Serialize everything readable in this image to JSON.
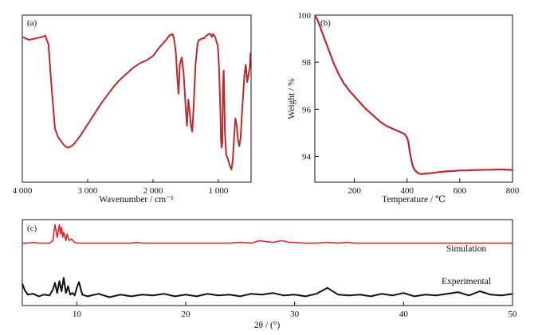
{
  "colors": {
    "red": "#c0272d",
    "sim_red": "#e0262c",
    "black": "#111111"
  },
  "chart_data": [
    {
      "panel": "(a)",
      "type": "line",
      "xlabel": "Wavenumber / cm⁻¹",
      "ylabel": "",
      "xlim": [
        4000,
        500
      ],
      "xticks": [
        4000,
        3000,
        2000,
        1000
      ],
      "xtick_labels": [
        "4 000",
        "3 000",
        "2 000",
        "1 000"
      ],
      "yticks_shown": false,
      "ylim": [
        0,
        100
      ],
      "series": [
        {
          "x": [
            4000,
            3900,
            3800,
            3700,
            3650,
            3600,
            3550,
            3500,
            3450,
            3400,
            3350,
            3300,
            3250,
            3200,
            3100,
            3000,
            2900,
            2800,
            2700,
            2600,
            2500,
            2400,
            2300,
            2200,
            2100,
            2000,
            1900,
            1800,
            1750,
            1700,
            1680,
            1650,
            1630,
            1610,
            1590,
            1560,
            1530,
            1500,
            1480,
            1460,
            1440,
            1420,
            1400,
            1380,
            1350,
            1320,
            1300,
            1280,
            1250,
            1220,
            1200,
            1180,
            1150,
            1120,
            1100,
            1080,
            1050,
            1030,
            1010,
            990,
            970,
            960,
            950,
            940,
            930,
            920,
            910,
            900,
            880,
            860,
            840,
            820,
            800,
            780,
            760,
            740,
            720,
            700,
            680,
            660,
            640,
            620,
            600,
            580,
            560,
            540,
            520,
            510,
            500
          ],
          "y": [
            91,
            89,
            90,
            91,
            92,
            86,
            55,
            28,
            22,
            19,
            16,
            15,
            16,
            18,
            24,
            31,
            38,
            45,
            51,
            57,
            62,
            66,
            70,
            73,
            75,
            78,
            84,
            89,
            92,
            93,
            90,
            80,
            64,
            52,
            72,
            77,
            65,
            42,
            30,
            48,
            40,
            30,
            26,
            42,
            72,
            86,
            89,
            89,
            90,
            90,
            91,
            92,
            93,
            93,
            91,
            93,
            91,
            88,
            85,
            70,
            40,
            20,
            15,
            18,
            55,
            68,
            50,
            25,
            10,
            8,
            5,
            2,
            0,
            6,
            22,
            35,
            30,
            20,
            16,
            22,
            38,
            52,
            66,
            72,
            60,
            65,
            70,
            80,
            78
          ]
        }
      ]
    },
    {
      "panel": "(b)",
      "type": "line",
      "xlabel": "Temperature / ℃",
      "ylabel": "Weight / %",
      "xlim": [
        50,
        800
      ],
      "ylim": [
        92.9,
        100
      ],
      "xticks": [
        200,
        400,
        600,
        800
      ],
      "yticks": [
        94,
        96,
        98,
        100
      ],
      "series": [
        {
          "x": [
            50,
            60,
            70,
            80,
            90,
            100,
            120,
            140,
            160,
            180,
            200,
            220,
            240,
            260,
            280,
            300,
            320,
            340,
            360,
            380,
            390,
            400,
            405,
            410,
            415,
            420,
            425,
            430,
            440,
            450,
            460,
            470,
            480,
            500,
            520,
            540,
            560,
            580,
            600,
            620,
            640,
            660,
            680,
            700,
            720,
            740,
            760,
            780,
            800
          ],
          "y": [
            100,
            99.8,
            99.5,
            99.2,
            98.9,
            98.6,
            98.0,
            97.5,
            97.1,
            96.8,
            96.55,
            96.3,
            96.05,
            95.85,
            95.65,
            95.45,
            95.3,
            95.2,
            95.1,
            95.0,
            94.95,
            94.8,
            94.6,
            94.2,
            93.9,
            93.65,
            93.5,
            93.4,
            93.3,
            93.25,
            93.25,
            93.27,
            93.28,
            93.3,
            93.33,
            93.35,
            93.37,
            93.38,
            93.4,
            93.4,
            93.41,
            93.42,
            93.42,
            93.43,
            93.43,
            93.44,
            93.44,
            93.43,
            93.42
          ]
        }
      ]
    },
    {
      "panel": "(c)",
      "type": "line",
      "xlabel": "2θ / (°)",
      "ylabel": "",
      "xlim": [
        5,
        50
      ],
      "xticks": [
        10,
        20,
        30,
        40,
        50
      ],
      "ylim": [
        0,
        100
      ],
      "series": [
        {
          "name": "Simulation",
          "x": [
            5,
            5.5,
            6,
            6.5,
            7,
            7.5,
            7.8,
            8.0,
            8.2,
            8.4,
            8.5,
            8.6,
            8.7,
            8.8,
            9.0,
            9.1,
            9.3,
            9.5,
            9.8,
            10.1,
            10.4,
            11,
            12,
            13,
            14,
            15,
            15.5,
            16,
            17,
            18,
            19,
            20,
            21,
            22,
            23,
            24,
            25,
            26,
            26.8,
            27.3,
            28,
            28.8,
            29.5,
            30,
            31,
            32,
            33,
            34,
            34.8,
            35.5,
            36,
            37,
            38,
            39,
            40,
            41,
            42,
            43,
            44,
            45,
            46,
            47,
            48,
            49,
            50
          ],
          "y": [
            73,
            73,
            74,
            73,
            73,
            73,
            76,
            95,
            80,
            95,
            84,
            92,
            80,
            86,
            76,
            84,
            76,
            78,
            74,
            73,
            73,
            73,
            73,
            73,
            73,
            73,
            74,
            73,
            73,
            73,
            73,
            73,
            73,
            73,
            73,
            73,
            74,
            73,
            76,
            75,
            74,
            76,
            74,
            74,
            73,
            73,
            74,
            73,
            74,
            73,
            73,
            73,
            73,
            73,
            73,
            73,
            73,
            73,
            73,
            73,
            73,
            73,
            73,
            73,
            73
          ]
        },
        {
          "name": "Experimental",
          "x": [
            5,
            5.2,
            5.5,
            6,
            6.5,
            7,
            7.5,
            7.8,
            8.0,
            8.2,
            8.4,
            8.6,
            8.8,
            9.0,
            9.2,
            9.4,
            9.6,
            9.8,
            10.0,
            10.2,
            10.5,
            11,
            12,
            13,
            14,
            15,
            16,
            17,
            18,
            19,
            20,
            21,
            22,
            23,
            24,
            25,
            26,
            27,
            28,
            29,
            30,
            31,
            32,
            33,
            34,
            35,
            36,
            37,
            38,
            39,
            40,
            41,
            42,
            43,
            44,
            45,
            46,
            47,
            48,
            49,
            50
          ],
          "y": [
            25,
            18,
            12,
            13,
            10,
            12,
            11,
            18,
            26,
            14,
            28,
            16,
            32,
            14,
            22,
            12,
            14,
            11,
            20,
            27,
            12,
            10,
            13,
            9,
            12,
            10,
            12,
            11,
            13,
            10,
            12,
            10,
            13,
            11,
            12,
            10,
            13,
            12,
            14,
            11,
            12,
            10,
            13,
            20,
            12,
            11,
            12,
            10,
            13,
            11,
            14,
            10,
            12,
            11,
            13,
            15,
            11,
            16,
            12,
            11,
            13
          ]
        }
      ],
      "annotations": [
        "Simulation",
        "Experimental"
      ]
    }
  ]
}
